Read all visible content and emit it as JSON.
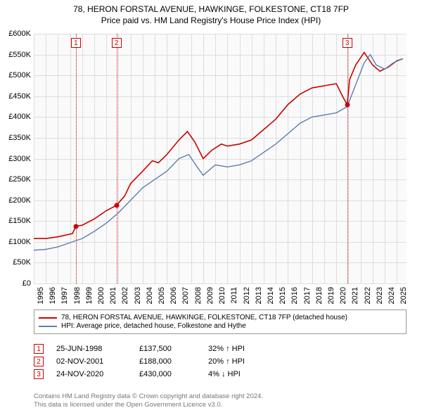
{
  "title_line1": "78, HERON FORSTAL AVENUE, HAWKINGE, FOLKESTONE, CT18 7FP",
  "title_line2": "Price paid vs. HM Land Registry's House Price Index (HPI)",
  "chart": {
    "type": "line",
    "background_color": "#fafafa",
    "grid_color": "#dddddd",
    "x_years": [
      1995,
      1996,
      1997,
      1998,
      1999,
      2000,
      2001,
      2002,
      2003,
      2004,
      2005,
      2006,
      2007,
      2008,
      2009,
      2010,
      2011,
      2012,
      2013,
      2014,
      2015,
      2016,
      2017,
      2018,
      2019,
      2020,
      2021,
      2022,
      2023,
      2024,
      2025
    ],
    "y_ticks": [
      0,
      50000,
      100000,
      150000,
      200000,
      250000,
      300000,
      350000,
      400000,
      450000,
      500000,
      550000,
      600000
    ],
    "y_tick_labels": [
      "£0",
      "£50K",
      "£100K",
      "£150K",
      "£200K",
      "£250K",
      "£300K",
      "£350K",
      "£400K",
      "£450K",
      "£500K",
      "£550K",
      "£600K"
    ],
    "ylim": [
      0,
      600000
    ],
    "xlim": [
      1995,
      2025.8
    ],
    "axis_fontsize": 11,
    "series": [
      {
        "name": "property",
        "color": "#cc0000",
        "width": 1.6,
        "points": [
          [
            1995,
            108000
          ],
          [
            1996,
            108000
          ],
          [
            1997,
            112000
          ],
          [
            1998.2,
            120000
          ],
          [
            1998.48,
            137500
          ],
          [
            1999,
            140000
          ],
          [
            2000,
            155000
          ],
          [
            2001,
            175000
          ],
          [
            2001.84,
            188000
          ],
          [
            2002.5,
            210000
          ],
          [
            2003,
            240000
          ],
          [
            2004,
            270000
          ],
          [
            2004.8,
            295000
          ],
          [
            2005.3,
            290000
          ],
          [
            2006,
            310000
          ],
          [
            2007,
            345000
          ],
          [
            2007.7,
            365000
          ],
          [
            2008.3,
            340000
          ],
          [
            2009,
            300000
          ],
          [
            2009.7,
            320000
          ],
          [
            2010.5,
            335000
          ],
          [
            2011,
            330000
          ],
          [
            2012,
            335000
          ],
          [
            2013,
            345000
          ],
          [
            2014,
            370000
          ],
          [
            2015,
            395000
          ],
          [
            2016,
            430000
          ],
          [
            2017,
            455000
          ],
          [
            2018,
            470000
          ],
          [
            2019,
            475000
          ],
          [
            2020,
            480000
          ],
          [
            2020.6,
            445000
          ],
          [
            2020.9,
            430000
          ],
          [
            2021.1,
            490000
          ],
          [
            2021.6,
            525000
          ],
          [
            2022.3,
            555000
          ],
          [
            2023,
            525000
          ],
          [
            2023.6,
            510000
          ],
          [
            2024.3,
            520000
          ],
          [
            2025,
            535000
          ],
          [
            2025.5,
            540000
          ]
        ]
      },
      {
        "name": "hpi",
        "color": "#5b7fb0",
        "width": 1.4,
        "points": [
          [
            1995,
            80000
          ],
          [
            1996,
            82000
          ],
          [
            1997,
            88000
          ],
          [
            1998,
            98000
          ],
          [
            1999,
            108000
          ],
          [
            2000,
            125000
          ],
          [
            2001,
            145000
          ],
          [
            2002,
            170000
          ],
          [
            2003,
            200000
          ],
          [
            2004,
            230000
          ],
          [
            2005,
            250000
          ],
          [
            2006,
            270000
          ],
          [
            2007,
            300000
          ],
          [
            2007.8,
            310000
          ],
          [
            2008.5,
            280000
          ],
          [
            2009,
            260000
          ],
          [
            2010,
            285000
          ],
          [
            2011,
            280000
          ],
          [
            2012,
            285000
          ],
          [
            2013,
            295000
          ],
          [
            2014,
            315000
          ],
          [
            2015,
            335000
          ],
          [
            2016,
            360000
          ],
          [
            2017,
            385000
          ],
          [
            2018,
            400000
          ],
          [
            2019,
            405000
          ],
          [
            2020,
            410000
          ],
          [
            2020.9,
            425000
          ],
          [
            2021.5,
            470000
          ],
          [
            2022.3,
            530000
          ],
          [
            2022.8,
            550000
          ],
          [
            2023.3,
            525000
          ],
          [
            2024,
            515000
          ],
          [
            2024.7,
            530000
          ],
          [
            2025.5,
            540000
          ]
        ]
      }
    ],
    "markers": [
      {
        "n": "1",
        "x": 1998.48,
        "y": 137500
      },
      {
        "n": "2",
        "x": 2001.84,
        "y": 188000
      },
      {
        "n": "3",
        "x": 2020.9,
        "y": 430000
      }
    ]
  },
  "legend": [
    {
      "color": "#cc0000",
      "label": "78, HERON FORSTAL AVENUE, HAWKINGE, FOLKESTONE, CT18 7FP (detached house)"
    },
    {
      "color": "#5b7fb0",
      "label": "HPI: Average price, detached house, Folkestone and Hythe"
    }
  ],
  "events": [
    {
      "n": "1",
      "date": "25-JUN-1998",
      "price": "£137,500",
      "pct": "32% ↑ HPI"
    },
    {
      "n": "2",
      "date": "02-NOV-2001",
      "price": "£188,000",
      "pct": "20% ↑ HPI"
    },
    {
      "n": "3",
      "date": "24-NOV-2020",
      "price": "£430,000",
      "pct": "4% ↓ HPI"
    }
  ],
  "footer_line1": "Contains HM Land Registry data © Crown copyright and database right 2024.",
  "footer_line2": "This data is licensed under the Open Government Licence v3.0.",
  "colors": {
    "marker": "#cc0000",
    "footer": "#777777",
    "border": "#999999"
  }
}
